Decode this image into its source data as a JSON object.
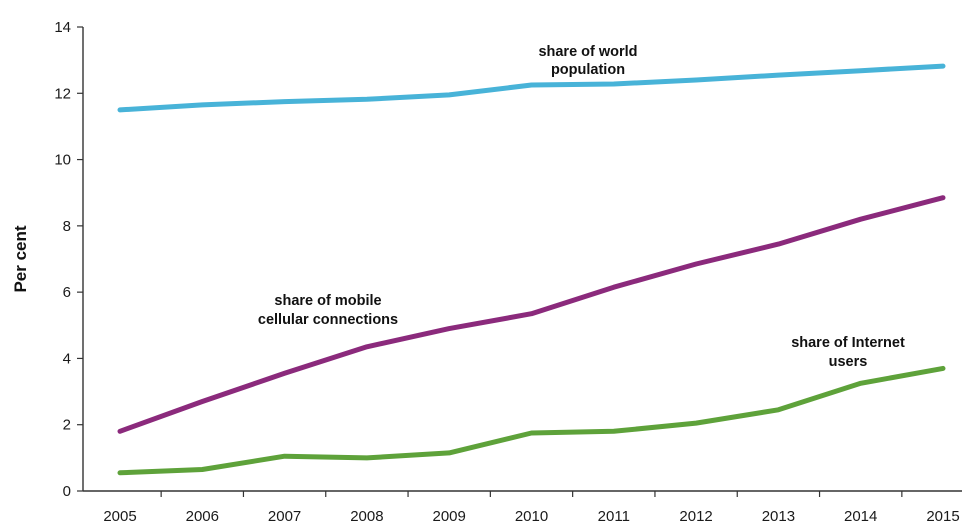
{
  "chart_data": {
    "type": "line",
    "title": "",
    "xlabel": "",
    "ylabel": "Per cent",
    "ylim": [
      0,
      14
    ],
    "yticks": [
      0,
      2,
      4,
      6,
      8,
      10,
      12,
      14
    ],
    "categories": [
      "2005",
      "2006",
      "2007",
      "2008",
      "2009",
      "2010",
      "2011",
      "2012",
      "2013",
      "2014",
      "2015"
    ],
    "grid": false,
    "legend": "none",
    "series": [
      {
        "name": "share of world population",
        "label_lines": [
          "share of world",
          "population"
        ],
        "color": "#48b3d8",
        "values": [
          11.5,
          11.65,
          11.75,
          11.82,
          11.95,
          12.25,
          12.28,
          12.4,
          12.55,
          12.68,
          12.82
        ]
      },
      {
        "name": "share of mobile cellular connections",
        "label_lines": [
          "share of mobile",
          "cellular connections"
        ],
        "color": "#8b2a7c",
        "values": [
          1.8,
          2.7,
          3.55,
          4.35,
          4.9,
          5.35,
          6.15,
          6.85,
          7.45,
          8.2,
          8.85
        ]
      },
      {
        "name": "share of Internet users",
        "label_lines": [
          "share of Internet",
          "users"
        ],
        "color": "#5ea23a",
        "values": [
          0.55,
          0.65,
          1.05,
          1.0,
          1.15,
          1.75,
          1.8,
          2.05,
          2.45,
          3.25,
          3.7
        ]
      }
    ]
  }
}
